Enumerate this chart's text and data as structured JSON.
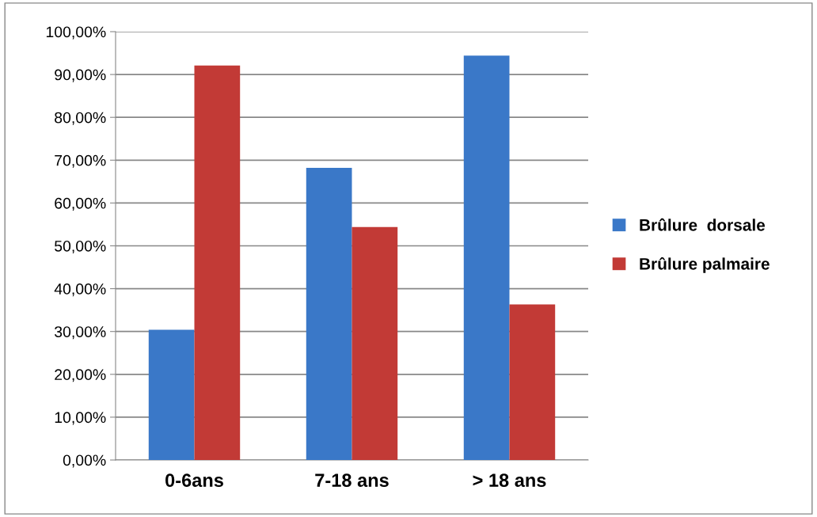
{
  "chart_data": {
    "type": "bar",
    "categories": [
      "0-6ans",
      "7-18 ans",
      "> 18 ans"
    ],
    "series": [
      {
        "name": "Brûlure  dorsale",
        "color": "#3a78c8",
        "values": [
          30.4,
          68.2,
          94.4
        ]
      },
      {
        "name": "Brûlure palmaire",
        "color": "#c23a36",
        "values": [
          92.1,
          54.4,
          36.3
        ]
      }
    ],
    "ylim": [
      0,
      100
    ],
    "yticks": [
      {
        "value": 0,
        "label": "0,00%"
      },
      {
        "value": 10,
        "label": "10,00%"
      },
      {
        "value": 20,
        "label": "20,00%"
      },
      {
        "value": 30,
        "label": "30,00%"
      },
      {
        "value": 40,
        "label": "40,00%"
      },
      {
        "value": 50,
        "label": "50,00%"
      },
      {
        "value": 60,
        "label": "60,00%"
      },
      {
        "value": 70,
        "label": "70,00%"
      },
      {
        "value": 80,
        "label": "80,00%"
      },
      {
        "value": 90,
        "label": "90,00%"
      },
      {
        "value": 100,
        "label": "100,00%"
      }
    ],
    "grid": "y",
    "legend": "right"
  }
}
